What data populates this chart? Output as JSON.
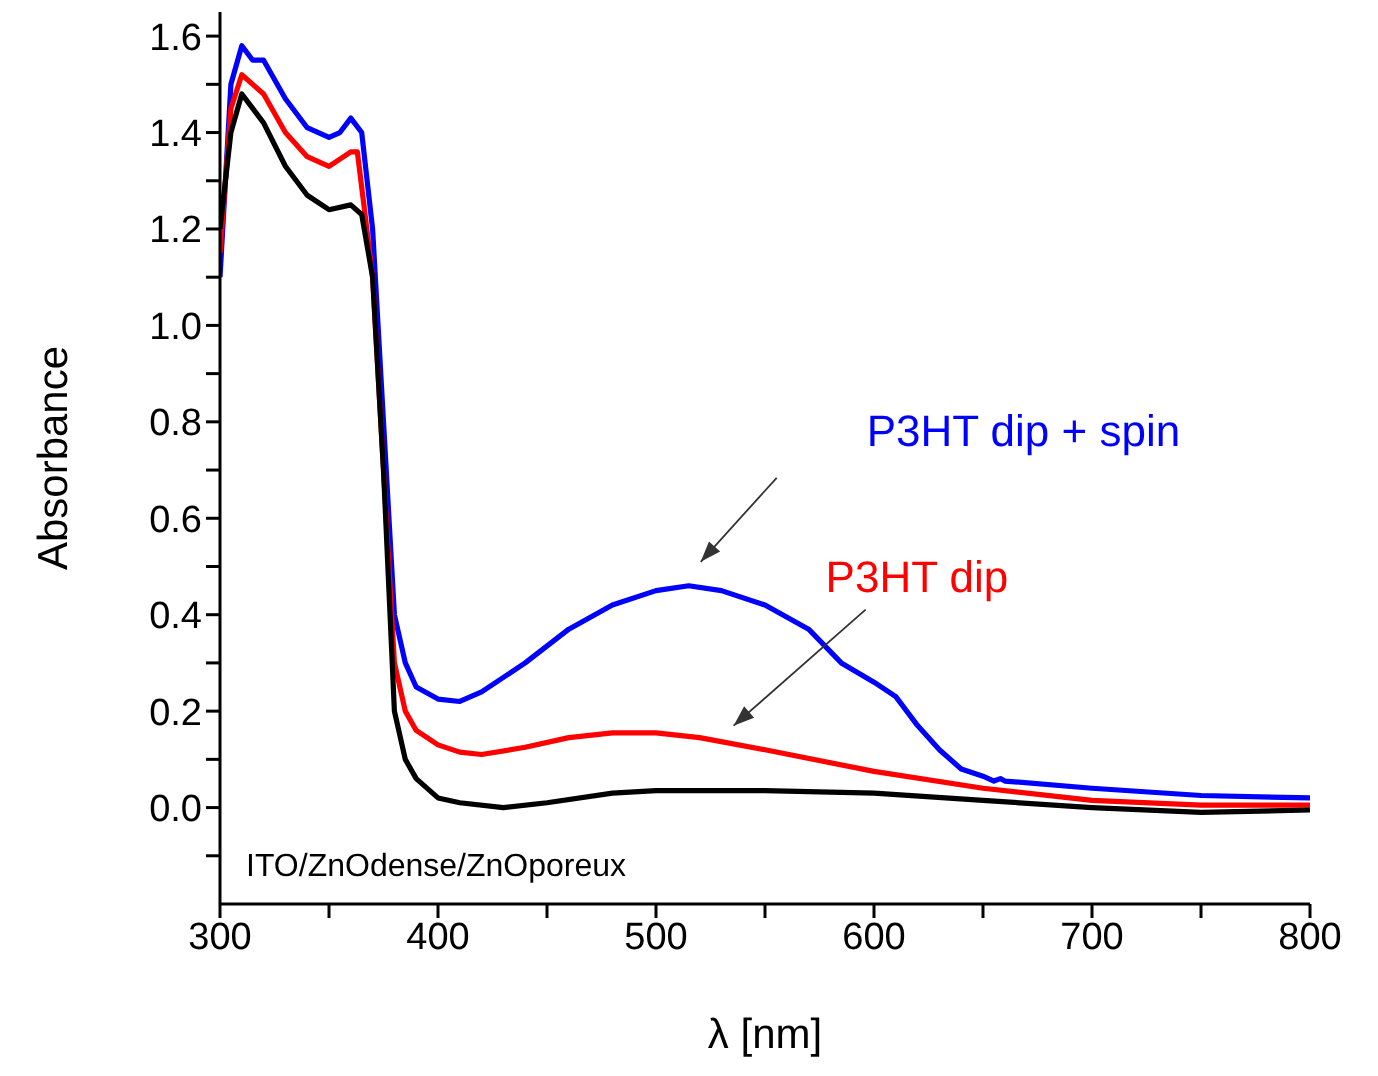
{
  "chart_data": {
    "type": "line",
    "xlabel": "λ [nm]",
    "ylabel": "Absorbance",
    "xlim": [
      300,
      800
    ],
    "ylim": [
      -0.2,
      1.65
    ],
    "xticks": [
      300,
      {
        "value": 350,
        "label": null
      },
      400,
      {
        "value": 450,
        "label": null
      },
      500,
      {
        "value": 550,
        "label": null
      },
      600,
      {
        "value": 650,
        "label": null
      },
      700,
      {
        "value": 750,
        "label": null
      },
      800
    ],
    "yticks": [
      {
        "value": -0.1,
        "label": null
      },
      {
        "value": 0,
        "label": "0.0"
      },
      {
        "value": 0.1,
        "label": null
      },
      {
        "value": 0.2,
        "label": "0.2"
      },
      {
        "value": 0.3,
        "label": null
      },
      {
        "value": 0.4,
        "label": "0.4"
      },
      {
        "value": 0.5,
        "label": null
      },
      {
        "value": 0.6,
        "label": "0.6"
      },
      {
        "value": 0.7,
        "label": null
      },
      {
        "value": 0.8,
        "label": "0.8"
      },
      {
        "value": 0.9,
        "label": null
      },
      {
        "value": 1,
        "label": "1.0"
      },
      {
        "value": 1.1,
        "label": null
      },
      {
        "value": 1.2,
        "label": "1.2"
      },
      {
        "value": 1.3,
        "label": null
      },
      {
        "value": 1.4,
        "label": "1.4"
      },
      {
        "value": 1.5,
        "label": null
      },
      {
        "value": 1.6,
        "label": "1.6"
      }
    ],
    "grid": false,
    "legend": false,
    "marker": "none",
    "line_style": "solid",
    "annotations": [
      "ITO/ZnOdense/ZnOporeux"
    ],
    "series": [
      {
        "name": "P3HT dip + spin",
        "color": "#0000ff",
        "x": [
          300,
          305,
          310,
          315,
          320,
          330,
          340,
          350,
          355,
          360,
          365,
          370,
          375,
          380,
          385,
          390,
          400,
          410,
          420,
          440,
          460,
          480,
          500,
          515,
          530,
          550,
          570,
          585,
          600,
          610,
          620,
          630,
          640,
          650,
          655,
          658,
          660,
          700,
          750,
          800
        ],
        "values": [
          1.1,
          1.5,
          1.58,
          1.55,
          1.55,
          1.47,
          1.41,
          1.39,
          1.4,
          1.43,
          1.4,
          1.2,
          0.8,
          0.4,
          0.3,
          0.25,
          0.225,
          0.22,
          0.24,
          0.3,
          0.37,
          0.42,
          0.45,
          0.46,
          0.45,
          0.42,
          0.37,
          0.3,
          0.26,
          0.23,
          0.17,
          0.12,
          0.08,
          0.065,
          0.055,
          0.06,
          0.055,
          0.04,
          0.025,
          0.02
        ]
      },
      {
        "name": "P3HT dip",
        "color": "#ff0000",
        "x": [
          300,
          305,
          310,
          315,
          320,
          330,
          340,
          350,
          360,
          363,
          366,
          370,
          375,
          380,
          385,
          390,
          400,
          410,
          420,
          440,
          460,
          480,
          500,
          520,
          550,
          600,
          650,
          700,
          750,
          800
        ],
        "values": [
          1.15,
          1.45,
          1.52,
          1.5,
          1.48,
          1.4,
          1.35,
          1.33,
          1.36,
          1.36,
          1.25,
          1.1,
          0.7,
          0.3,
          0.2,
          0.16,
          0.13,
          0.115,
          0.11,
          0.125,
          0.145,
          0.155,
          0.155,
          0.145,
          0.12,
          0.075,
          0.04,
          0.015,
          0.005,
          0.005
        ]
      },
      {
        "color": "#000000",
        "x": [
          300,
          305,
          310,
          315,
          320,
          330,
          340,
          350,
          360,
          365,
          370,
          375,
          380,
          385,
          390,
          400,
          410,
          430,
          450,
          480,
          500,
          550,
          600,
          650,
          700,
          750,
          800
        ],
        "values": [
          1.2,
          1.4,
          1.48,
          1.45,
          1.42,
          1.33,
          1.27,
          1.24,
          1.25,
          1.23,
          1.1,
          0.7,
          0.2,
          0.1,
          0.06,
          0.02,
          0.01,
          0,
          0.01,
          0.03,
          0.035,
          0.035,
          0.03,
          0.015,
          0,
          -0.01,
          -0.005
        ]
      }
    ]
  }
}
